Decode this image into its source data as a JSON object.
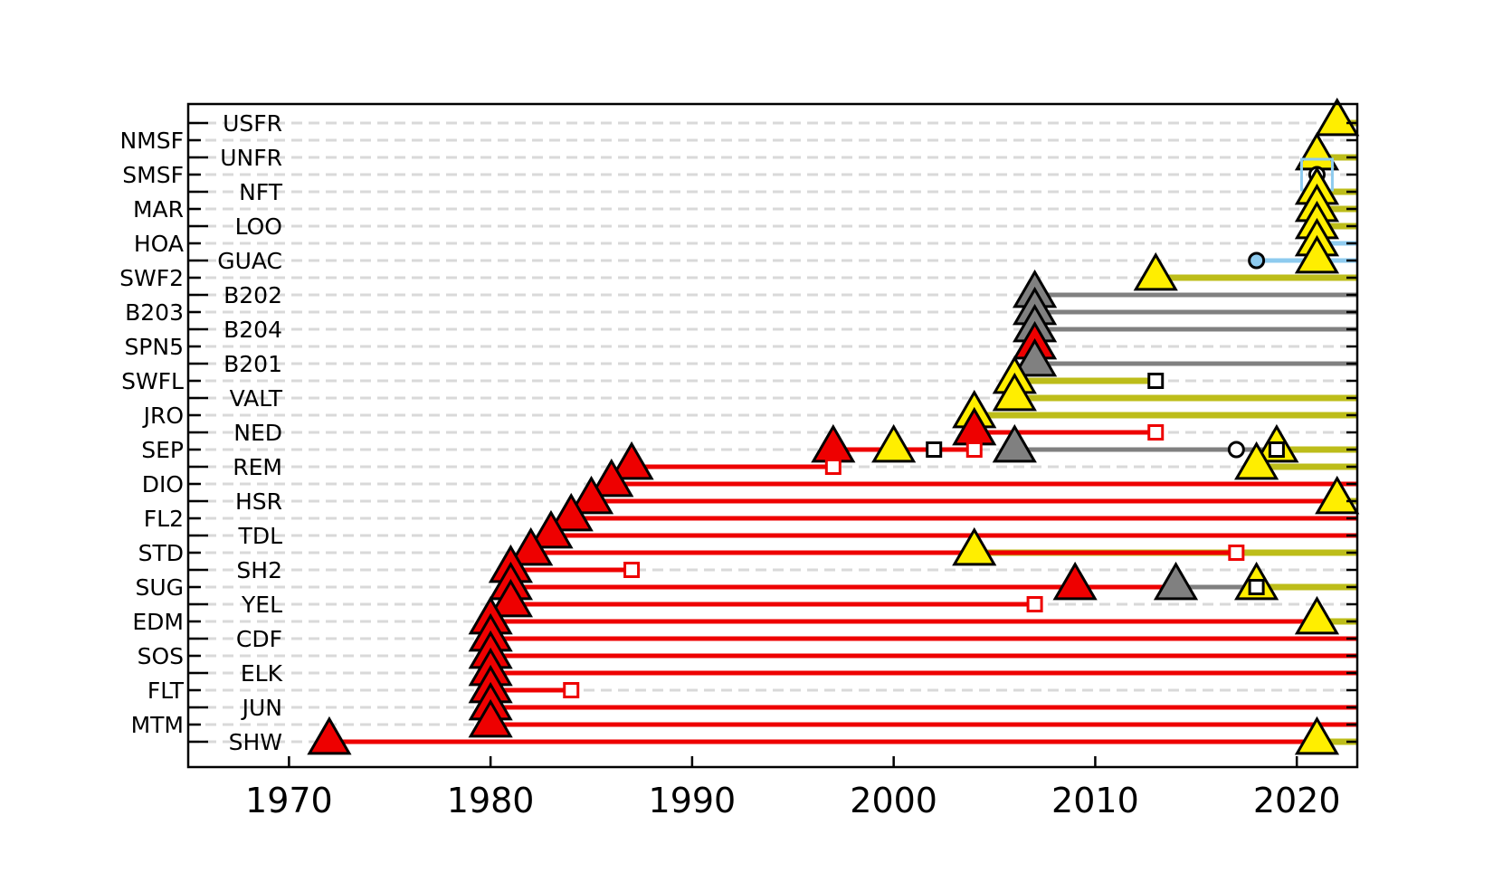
{
  "chart_data": {
    "type": "station-timeline",
    "title": "",
    "xlabel": "",
    "ylabel": "",
    "xlim": [
      1965,
      2023
    ],
    "x_ticks": [
      1970,
      1980,
      1990,
      2000,
      2010,
      2020
    ],
    "grid": "horizontal dashed",
    "legend": "none",
    "colors": {
      "red": "#ee0000",
      "yellow": "#ffee00",
      "olive": "#bdbd1a",
      "gray": "#808080",
      "blue": "#8ecbef",
      "black": "#000000"
    },
    "stations": [
      {
        "name": "USFR",
        "column": "right",
        "segments": [
          {
            "from": 2022,
            "to": 2023,
            "color": "olive"
          }
        ],
        "markers": [
          {
            "x": 2022,
            "shape": "triangle",
            "color": "yellow"
          }
        ]
      },
      {
        "name": "NMSF",
        "column": "left",
        "segments": [],
        "markers": []
      },
      {
        "name": "UNFR",
        "column": "right",
        "segments": [
          {
            "from": 2021,
            "to": 2023,
            "color": "olive"
          }
        ],
        "markers": [
          {
            "x": 2021,
            "shape": "triangle",
            "color": "yellow"
          }
        ]
      },
      {
        "name": "SMSF",
        "column": "left",
        "segments": [],
        "markers": [
          {
            "x": 2021,
            "shape": "circle",
            "color": "black"
          },
          {
            "x": 2021,
            "shape": "square-large",
            "color": "blue"
          }
        ]
      },
      {
        "name": "NFT",
        "column": "right",
        "segments": [
          {
            "from": 2021,
            "to": 2023,
            "color": "olive"
          }
        ],
        "markers": [
          {
            "x": 2021,
            "shape": "triangle",
            "color": "yellow"
          }
        ]
      },
      {
        "name": "MAR",
        "column": "left",
        "segments": [
          {
            "from": 2021,
            "to": 2023,
            "color": "olive"
          }
        ],
        "markers": [
          {
            "x": 2021,
            "shape": "triangle",
            "color": "yellow"
          }
        ]
      },
      {
        "name": "LOO",
        "column": "right",
        "segments": [
          {
            "from": 2021,
            "to": 2023,
            "color": "olive"
          }
        ],
        "markers": [
          {
            "x": 2021,
            "shape": "triangle",
            "color": "yellow"
          }
        ]
      },
      {
        "name": "HOA",
        "column": "left",
        "segments": [
          {
            "from": 2021,
            "to": 2023,
            "color": "blue"
          }
        ],
        "markers": [
          {
            "x": 2021,
            "shape": "triangle",
            "color": "yellow"
          }
        ]
      },
      {
        "name": "GUAC",
        "column": "right",
        "segments": [
          {
            "from": 2018,
            "to": 2023,
            "color": "blue"
          }
        ],
        "markers": [
          {
            "x": 2018,
            "shape": "circle",
            "color": "blue"
          },
          {
            "x": 2021,
            "shape": "triangle",
            "color": "yellow"
          }
        ]
      },
      {
        "name": "SWF2",
        "column": "left",
        "segments": [
          {
            "from": 2013,
            "to": 2023,
            "color": "olive"
          }
        ],
        "markers": [
          {
            "x": 2013,
            "shape": "triangle",
            "color": "yellow"
          }
        ]
      },
      {
        "name": "B202",
        "column": "right",
        "segments": [
          {
            "from": 2007,
            "to": 2023,
            "color": "gray"
          }
        ],
        "markers": [
          {
            "x": 2007,
            "shape": "triangle",
            "color": "gray"
          }
        ]
      },
      {
        "name": "B203",
        "column": "left",
        "segments": [
          {
            "from": 2007,
            "to": 2023,
            "color": "gray"
          }
        ],
        "markers": [
          {
            "x": 2007,
            "shape": "triangle",
            "color": "gray"
          }
        ]
      },
      {
        "name": "B204",
        "column": "right",
        "segments": [
          {
            "from": 2007,
            "to": 2023,
            "color": "gray"
          }
        ],
        "markers": [
          {
            "x": 2007,
            "shape": "triangle",
            "color": "gray"
          }
        ]
      },
      {
        "name": "SPN5",
        "column": "left",
        "segments": [],
        "markers": [
          {
            "x": 2007,
            "shape": "triangle",
            "color": "red"
          }
        ]
      },
      {
        "name": "B201",
        "column": "right",
        "segments": [
          {
            "from": 2007,
            "to": 2023,
            "color": "gray"
          }
        ],
        "markers": [
          {
            "x": 2007,
            "shape": "triangle",
            "color": "gray"
          }
        ]
      },
      {
        "name": "SWFL",
        "column": "left",
        "segments": [
          {
            "from": 2006,
            "to": 2013,
            "color": "olive"
          }
        ],
        "markers": [
          {
            "x": 2006,
            "shape": "triangle",
            "color": "yellow"
          },
          {
            "x": 2013,
            "shape": "square",
            "color": "black"
          }
        ]
      },
      {
        "name": "VALT",
        "column": "right",
        "segments": [
          {
            "from": 2006,
            "to": 2023,
            "color": "olive"
          }
        ],
        "markers": [
          {
            "x": 2006,
            "shape": "triangle",
            "color": "yellow"
          }
        ]
      },
      {
        "name": "JRO",
        "column": "left",
        "segments": [
          {
            "from": 2004,
            "to": 2023,
            "color": "olive"
          }
        ],
        "markers": [
          {
            "x": 2004,
            "shape": "triangle",
            "color": "yellow"
          }
        ]
      },
      {
        "name": "NED",
        "column": "right",
        "segments": [
          {
            "from": 2004,
            "to": 2013,
            "color": "red"
          }
        ],
        "markers": [
          {
            "x": 2004,
            "shape": "triangle",
            "color": "red"
          },
          {
            "x": 2013,
            "shape": "square",
            "color": "red"
          }
        ]
      },
      {
        "name": "SEP",
        "column": "left",
        "segments": [
          {
            "from": 1997,
            "to": 2004,
            "color": "red"
          },
          {
            "from": 2006,
            "to": 2019,
            "color": "gray"
          },
          {
            "from": 2019,
            "to": 2023,
            "color": "olive"
          }
        ],
        "markers": [
          {
            "x": 1997,
            "shape": "triangle",
            "color": "red"
          },
          {
            "x": 2000,
            "shape": "triangle",
            "color": "yellow"
          },
          {
            "x": 2002,
            "shape": "square",
            "color": "black"
          },
          {
            "x": 2004,
            "shape": "square",
            "color": "red"
          },
          {
            "x": 2006,
            "shape": "triangle",
            "color": "gray"
          },
          {
            "x": 2017,
            "shape": "circle",
            "color": "black"
          },
          {
            "x": 2019,
            "shape": "triangle",
            "color": "yellow"
          },
          {
            "x": 2019,
            "shape": "square",
            "color": "black"
          }
        ]
      },
      {
        "name": "REM",
        "column": "right",
        "segments": [
          {
            "from": 1987,
            "to": 1997,
            "color": "red"
          },
          {
            "from": 2018,
            "to": 2023,
            "color": "olive"
          }
        ],
        "markers": [
          {
            "x": 1987,
            "shape": "triangle",
            "color": "red"
          },
          {
            "x": 1997,
            "shape": "square",
            "color": "red"
          },
          {
            "x": 2018,
            "shape": "triangle",
            "color": "yellow"
          }
        ]
      },
      {
        "name": "DIO",
        "column": "left",
        "segments": [
          {
            "from": 1986,
            "to": 2023,
            "color": "red"
          }
        ],
        "markers": [
          {
            "x": 1986,
            "shape": "triangle",
            "color": "red"
          }
        ]
      },
      {
        "name": "HSR",
        "column": "right",
        "segments": [
          {
            "from": 1985,
            "to": 2022,
            "color": "red"
          },
          {
            "from": 2022,
            "to": 2023,
            "color": "olive"
          }
        ],
        "markers": [
          {
            "x": 1985,
            "shape": "triangle",
            "color": "red"
          },
          {
            "x": 2022,
            "shape": "triangle",
            "color": "yellow"
          }
        ]
      },
      {
        "name": "FL2",
        "column": "left",
        "segments": [
          {
            "from": 1984,
            "to": 2023,
            "color": "red"
          }
        ],
        "markers": [
          {
            "x": 1984,
            "shape": "triangle",
            "color": "red"
          }
        ]
      },
      {
        "name": "TDL",
        "column": "right",
        "segments": [
          {
            "from": 1983,
            "to": 2023,
            "color": "red"
          }
        ],
        "markers": [
          {
            "x": 1983,
            "shape": "triangle",
            "color": "red"
          }
        ]
      },
      {
        "name": "STD",
        "column": "left",
        "segments": [
          {
            "from": 1982,
            "to": 2004,
            "color": "red"
          },
          {
            "from": 2004,
            "to": 2023,
            "color": "olive"
          },
          {
            "from": 2004,
            "to": 2017,
            "color": "red"
          }
        ],
        "markers": [
          {
            "x": 1982,
            "shape": "triangle",
            "color": "red"
          },
          {
            "x": 2004,
            "shape": "triangle",
            "color": "yellow"
          },
          {
            "x": 2017,
            "shape": "square",
            "color": "red"
          }
        ]
      },
      {
        "name": "SH2",
        "column": "right",
        "segments": [
          {
            "from": 1981,
            "to": 1987,
            "color": "red"
          }
        ],
        "markers": [
          {
            "x": 1981,
            "shape": "triangle",
            "color": "red"
          },
          {
            "x": 1987,
            "shape": "square",
            "color": "red"
          }
        ]
      },
      {
        "name": "SUG",
        "column": "left",
        "segments": [
          {
            "from": 1981,
            "to": 2014,
            "color": "red"
          },
          {
            "from": 2014,
            "to": 2018,
            "color": "gray"
          },
          {
            "from": 2018,
            "to": 2023,
            "color": "olive"
          }
        ],
        "markers": [
          {
            "x": 1981,
            "shape": "triangle",
            "color": "red"
          },
          {
            "x": 2009,
            "shape": "triangle",
            "color": "red"
          },
          {
            "x": 2014,
            "shape": "square",
            "color": "red"
          },
          {
            "x": 2014,
            "shape": "triangle",
            "color": "gray"
          },
          {
            "x": 2018,
            "shape": "triangle",
            "color": "yellow"
          },
          {
            "x": 2018,
            "shape": "square",
            "color": "black"
          }
        ]
      },
      {
        "name": "YEL",
        "column": "right",
        "segments": [
          {
            "from": 1981,
            "to": 2007,
            "color": "red"
          }
        ],
        "markers": [
          {
            "x": 1981,
            "shape": "triangle",
            "color": "red"
          },
          {
            "x": 2007,
            "shape": "square",
            "color": "red"
          }
        ]
      },
      {
        "name": "EDM",
        "column": "left",
        "segments": [
          {
            "from": 1980,
            "to": 2021,
            "color": "red"
          },
          {
            "from": 2021,
            "to": 2023,
            "color": "olive"
          }
        ],
        "markers": [
          {
            "x": 1980,
            "shape": "triangle",
            "color": "red"
          },
          {
            "x": 2021,
            "shape": "triangle",
            "color": "yellow"
          }
        ]
      },
      {
        "name": "CDF",
        "column": "right",
        "segments": [
          {
            "from": 1980,
            "to": 2023,
            "color": "red"
          }
        ],
        "markers": [
          {
            "x": 1980,
            "shape": "triangle",
            "color": "red"
          }
        ]
      },
      {
        "name": "SOS",
        "column": "left",
        "segments": [
          {
            "from": 1980,
            "to": 2023,
            "color": "red"
          }
        ],
        "markers": [
          {
            "x": 1980,
            "shape": "triangle",
            "color": "red"
          }
        ]
      },
      {
        "name": "ELK",
        "column": "right",
        "segments": [
          {
            "from": 1980,
            "to": 2023,
            "color": "red"
          }
        ],
        "markers": [
          {
            "x": 1980,
            "shape": "triangle",
            "color": "red"
          }
        ]
      },
      {
        "name": "FLT",
        "column": "left",
        "segments": [
          {
            "from": 1980,
            "to": 1984,
            "color": "red"
          }
        ],
        "markers": [
          {
            "x": 1980,
            "shape": "triangle",
            "color": "red"
          },
          {
            "x": 1984,
            "shape": "square",
            "color": "red"
          }
        ]
      },
      {
        "name": "JUN",
        "column": "right",
        "segments": [
          {
            "from": 1980,
            "to": 2023,
            "color": "red"
          }
        ],
        "markers": [
          {
            "x": 1980,
            "shape": "triangle",
            "color": "red"
          }
        ]
      },
      {
        "name": "MTM",
        "column": "left",
        "segments": [
          {
            "from": 1980,
            "to": 2023,
            "color": "red"
          }
        ],
        "markers": [
          {
            "x": 1980,
            "shape": "triangle",
            "color": "red"
          }
        ]
      },
      {
        "name": "SHW",
        "column": "right",
        "segments": [
          {
            "from": 1972,
            "to": 2021,
            "color": "red"
          },
          {
            "from": 2021,
            "to": 2023,
            "color": "olive"
          }
        ],
        "markers": [
          {
            "x": 1972,
            "shape": "triangle",
            "color": "red"
          },
          {
            "x": 2021,
            "shape": "triangle",
            "color": "yellow"
          }
        ]
      }
    ]
  }
}
